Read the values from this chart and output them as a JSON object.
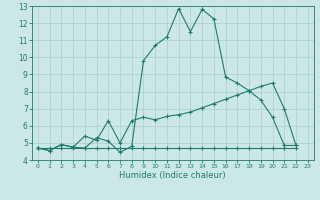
{
  "xlabel": "Humidex (Indice chaleur)",
  "bg_color": "#cce8e6",
  "grid_color": "#aacfcc",
  "line_color": "#1e7b6e",
  "xlim": [
    -0.5,
    23.5
  ],
  "ylim": [
    4,
    13
  ],
  "xticks": [
    0,
    1,
    2,
    3,
    4,
    5,
    6,
    7,
    8,
    9,
    10,
    11,
    12,
    13,
    14,
    15,
    16,
    17,
    18,
    19,
    20,
    21,
    22,
    23
  ],
  "yticks": [
    4,
    5,
    6,
    7,
    8,
    9,
    10,
    11,
    12,
    13
  ],
  "line1_x": [
    0,
    1,
    2,
    3,
    4,
    5,
    6,
    7,
    8,
    9,
    10,
    11,
    12,
    13,
    14,
    15,
    16,
    17,
    18,
    19,
    20,
    21,
    22
  ],
  "line1_y": [
    4.7,
    4.55,
    4.9,
    4.75,
    4.7,
    5.3,
    5.1,
    4.45,
    4.8,
    9.8,
    10.7,
    11.2,
    12.85,
    11.5,
    12.8,
    12.25,
    8.85,
    8.5,
    8.05,
    7.5,
    6.5,
    4.85,
    4.85
  ],
  "line2_x": [
    0,
    1,
    2,
    3,
    4,
    5,
    6,
    7,
    8,
    9,
    10,
    11,
    12,
    13,
    14,
    15,
    16,
    17,
    18,
    19,
    20,
    21,
    22
  ],
  "line2_y": [
    4.7,
    4.55,
    4.9,
    4.75,
    5.4,
    5.15,
    6.3,
    5.0,
    6.3,
    6.5,
    6.35,
    6.55,
    6.65,
    6.8,
    7.05,
    7.3,
    7.55,
    7.8,
    8.05,
    8.3,
    8.5,
    7.0,
    4.85
  ],
  "line3_x": [
    0,
    1,
    2,
    3,
    4,
    5,
    6,
    7,
    8,
    9,
    10,
    11,
    12,
    13,
    14,
    15,
    16,
    17,
    18,
    19,
    20,
    21,
    22
  ],
  "line3_y": [
    4.7,
    4.7,
    4.7,
    4.7,
    4.7,
    4.7,
    4.7,
    4.7,
    4.7,
    4.7,
    4.7,
    4.7,
    4.7,
    4.7,
    4.7,
    4.7,
    4.7,
    4.7,
    4.7,
    4.7,
    4.7,
    4.7,
    4.7
  ],
  "xlabel_fontsize": 6,
  "tick_fontsize_x": 4.5,
  "tick_fontsize_y": 5.5,
  "marker_size": 2.5,
  "line_width": 0.8
}
